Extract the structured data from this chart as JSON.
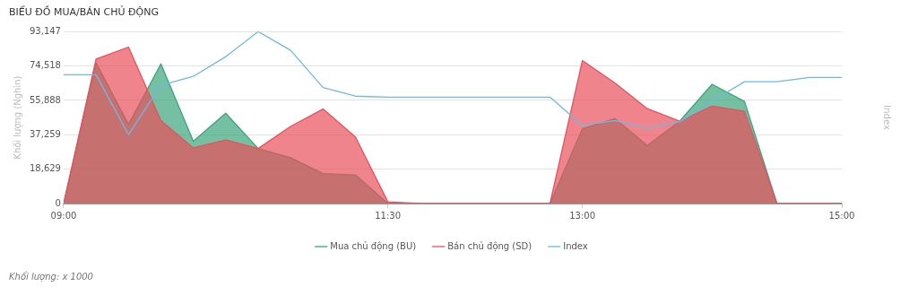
{
  "chart_data": {
    "type": "area",
    "title": "BIỂU ĐỒ MUA/BÁN CHỦ ĐỘNG",
    "ylabel": "Khối lượng (Nghìn)",
    "y2label": "Index",
    "x": [
      9,
      9.25,
      9.5,
      9.75,
      10,
      10.25,
      10.5,
      10.75,
      11,
      11.25,
      11.5,
      11.75,
      12,
      12.25,
      12.5,
      12.75,
      13,
      13.25,
      13.5,
      13.75,
      14,
      14.25,
      14.5,
      14.75,
      15
    ],
    "series": [
      {
        "name": "Mua chủ động (BU)",
        "color": "#3aa57a",
        "values": [
          0,
          76200,
          42800,
          75640,
          33700,
          48900,
          29800,
          24800,
          16200,
          15500,
          0,
          0,
          0,
          0,
          0,
          0,
          40500,
          46000,
          31400,
          44600,
          64600,
          55300,
          0,
          0,
          0
        ]
      },
      {
        "name": "Bán chủ động (SD)",
        "color": "#e8505b",
        "values": [
          0,
          78300,
          84750,
          44960,
          30150,
          34430,
          29800,
          41750,
          51200,
          36040,
          900,
          0,
          0,
          0,
          0,
          0,
          77430,
          65300,
          51400,
          44600,
          52800,
          49950,
          0,
          0,
          0
        ]
      },
      {
        "name": "Index",
        "type": "line",
        "color": "#6cb8e8",
        "values": [
          69750,
          69750,
          37300,
          64050,
          68860,
          79570,
          93130,
          82960,
          62800,
          58160,
          57620,
          57620,
          57620,
          57620,
          57620,
          57620,
          42280,
          44960,
          40850,
          44240,
          55480,
          66000,
          66000,
          68330,
          68330
        ]
      }
    ],
    "xlim": [
      9,
      15
    ],
    "xticks": [
      {
        "value": 9,
        "label": "09:00"
      },
      {
        "value": 11.5,
        "label": "11:30"
      },
      {
        "value": 13,
        "label": "13:00"
      },
      {
        "value": 15,
        "label": "15:00"
      }
    ],
    "ylim": [
      0,
      93147
    ],
    "yticks": [
      0,
      {
        "value": 18629,
        "label": "18,629"
      },
      {
        "value": 37259,
        "label": "37,259"
      },
      {
        "value": 55888,
        "label": "55,888"
      },
      {
        "value": 74518,
        "label": "74,518"
      },
      {
        "value": 93147,
        "label": "93,147"
      }
    ],
    "grid": "y",
    "legend": "bottom",
    "marker": "none",
    "line_style": "solid",
    "annotations": [
      "Khối lượng: x 1000"
    ]
  }
}
